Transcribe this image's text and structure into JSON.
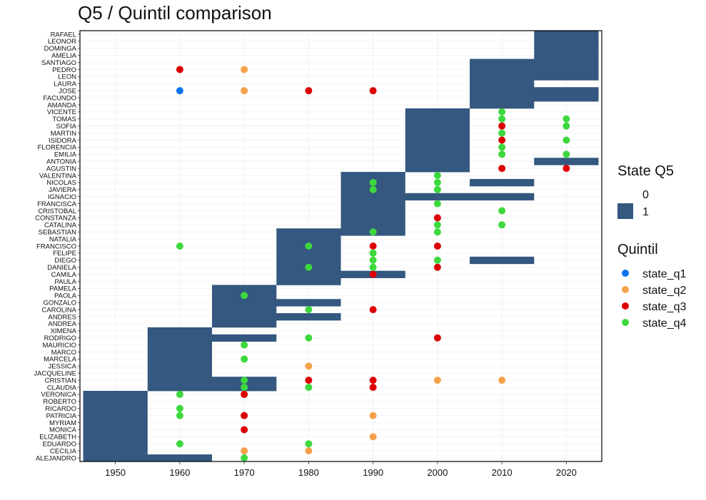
{
  "chart_data": {
    "type": "heatmap",
    "title": "Q5 / Quintil comparison",
    "xlabel": "",
    "ylabel": "",
    "x_ticks": [
      1950,
      1960,
      1970,
      1980,
      1990,
      2000,
      2010,
      2020
    ],
    "xlim": [
      1944.5,
      2025.5
    ],
    "names": [
      "RAFAEL",
      "LEONOR",
      "DOMINGA",
      "AMELIA",
      "SANTIAGO",
      "PEDRO",
      "LEON",
      "LAURA",
      "JOSE",
      "FACUNDO",
      "AMANDA",
      "VICENTE",
      "TOMAS",
      "SOFIA",
      "MARTIN",
      "ISIDORA",
      "FLORENCIA",
      "EMILIA",
      "ANTONIA",
      "AGUSTIN",
      "VALENTINA",
      "NICOLAS",
      "JAVIERA",
      "IGNACIO",
      "FRANCISCA",
      "CRISTOBAL",
      "CONSTANZA",
      "CATALINA",
      "SEBASTIAN",
      "NATALIA",
      "FRANCISCO",
      "FELIPE",
      "DIEGO",
      "DANIELA",
      "CAMILA",
      "PAULA",
      "PAMELA",
      "PAOLA",
      "GONZALO",
      "CAROLINA",
      "ANDRES",
      "ANDREA",
      "XIMENA",
      "RODRIGO",
      "MAURICIO",
      "MARCO",
      "MARCELA",
      "JESSICA",
      "JACQUELINE",
      "CRISTIAN",
      "CLAUDIA",
      "VERONICA",
      "ROBERTO",
      "RICARDO",
      "PATRICIA",
      "MYRIAM",
      "MONICA",
      "ELIZABETH",
      "EDUARDO",
      "CECILIA",
      "ALEJANDRO"
    ],
    "state_q5": {
      "levels": [
        "0",
        "1"
      ],
      "colors": {
        "0": "#ffffff",
        "1": "#34587f"
      },
      "tiles_value_1": [
        {
          "name": "RAFAEL",
          "from": 2015,
          "to": 2025
        },
        {
          "name": "LEONOR",
          "from": 2015,
          "to": 2025
        },
        {
          "name": "DOMINGA",
          "from": 2015,
          "to": 2025
        },
        {
          "name": "AMELIA",
          "from": 2015,
          "to": 2025
        },
        {
          "name": "SANTIAGO",
          "from": 2005,
          "to": 2025
        },
        {
          "name": "PEDRO",
          "from": 2005,
          "to": 2025
        },
        {
          "name": "LEON",
          "from": 2005,
          "to": 2025
        },
        {
          "name": "LAURA",
          "from": 2005,
          "to": 2015
        },
        {
          "name": "JOSE",
          "from": 2005,
          "to": 2025
        },
        {
          "name": "FACUNDO",
          "from": 2005,
          "to": 2025
        },
        {
          "name": "AMANDA",
          "from": 2005,
          "to": 2015
        },
        {
          "name": "VICENTE",
          "from": 1995,
          "to": 2005
        },
        {
          "name": "TOMAS",
          "from": 1995,
          "to": 2005
        },
        {
          "name": "SOFIA",
          "from": 1995,
          "to": 2005
        },
        {
          "name": "MARTIN",
          "from": 1995,
          "to": 2005
        },
        {
          "name": "ISIDORA",
          "from": 1995,
          "to": 2005
        },
        {
          "name": "FLORENCIA",
          "from": 1995,
          "to": 2005
        },
        {
          "name": "EMILIA",
          "from": 1995,
          "to": 2005
        },
        {
          "name": "ANTONIA",
          "from": 1995,
          "to": 2005
        },
        {
          "name": "ANTONIA",
          "from": 2015,
          "to": 2025
        },
        {
          "name": "AGUSTIN",
          "from": 1995,
          "to": 2005
        },
        {
          "name": "VALENTINA",
          "from": 1985,
          "to": 1995
        },
        {
          "name": "NICOLAS",
          "from": 1985,
          "to": 1995
        },
        {
          "name": "NICOLAS",
          "from": 2005,
          "to": 2015
        },
        {
          "name": "JAVIERA",
          "from": 1985,
          "to": 1995
        },
        {
          "name": "IGNACIO",
          "from": 1985,
          "to": 2015
        },
        {
          "name": "FRANCISCA",
          "from": 1985,
          "to": 1995
        },
        {
          "name": "CRISTOBAL",
          "from": 1985,
          "to": 1995
        },
        {
          "name": "CONSTANZA",
          "from": 1985,
          "to": 1995
        },
        {
          "name": "CATALINA",
          "from": 1985,
          "to": 1995
        },
        {
          "name": "SEBASTIAN",
          "from": 1975,
          "to": 1995
        },
        {
          "name": "NATALIA",
          "from": 1975,
          "to": 1985
        },
        {
          "name": "FRANCISCO",
          "from": 1975,
          "to": 1985
        },
        {
          "name": "FELIPE",
          "from": 1975,
          "to": 1985
        },
        {
          "name": "DIEGO",
          "from": 1975,
          "to": 1985
        },
        {
          "name": "DIEGO",
          "from": 2005,
          "to": 2015
        },
        {
          "name": "DANIELA",
          "from": 1975,
          "to": 1985
        },
        {
          "name": "CAMILA",
          "from": 1975,
          "to": 1995
        },
        {
          "name": "PAULA",
          "from": 1975,
          "to": 1985
        },
        {
          "name": "PAMELA",
          "from": 1965,
          "to": 1975
        },
        {
          "name": "PAOLA",
          "from": 1965,
          "to": 1975
        },
        {
          "name": "GONZALO",
          "from": 1965,
          "to": 1985
        },
        {
          "name": "CAROLINA",
          "from": 1965,
          "to": 1975
        },
        {
          "name": "ANDRES",
          "from": 1965,
          "to": 1985
        },
        {
          "name": "ANDREA",
          "from": 1965,
          "to": 1975
        },
        {
          "name": "XIMENA",
          "from": 1955,
          "to": 1965
        },
        {
          "name": "RODRIGO",
          "from": 1955,
          "to": 1975
        },
        {
          "name": "MAURICIO",
          "from": 1955,
          "to": 1965
        },
        {
          "name": "MARCO",
          "from": 1955,
          "to": 1965
        },
        {
          "name": "MARCELA",
          "from": 1955,
          "to": 1965
        },
        {
          "name": "JESSICA",
          "from": 1955,
          "to": 1965
        },
        {
          "name": "JACQUELINE",
          "from": 1955,
          "to": 1965
        },
        {
          "name": "CRISTIAN",
          "from": 1955,
          "to": 1975
        },
        {
          "name": "CLAUDIA",
          "from": 1955,
          "to": 1975
        },
        {
          "name": "VERONICA",
          "from": 1945,
          "to": 1955
        },
        {
          "name": "ROBERTO",
          "from": 1945,
          "to": 1955
        },
        {
          "name": "RICARDO",
          "from": 1945,
          "to": 1955
        },
        {
          "name": "PATRICIA",
          "from": 1945,
          "to": 1955
        },
        {
          "name": "MYRIAM",
          "from": 1945,
          "to": 1955
        },
        {
          "name": "MONICA",
          "from": 1945,
          "to": 1955
        },
        {
          "name": "ELIZABETH",
          "from": 1945,
          "to": 1955
        },
        {
          "name": "EDUARDO",
          "from": 1945,
          "to": 1955
        },
        {
          "name": "CECILIA",
          "from": 1945,
          "to": 1955
        },
        {
          "name": "ALEJANDRO",
          "from": 1945,
          "to": 1965
        }
      ]
    },
    "quintil": {
      "levels": [
        "state_q1",
        "state_q2",
        "state_q3",
        "state_q4"
      ],
      "colors": {
        "state_q1": "#0a74e8",
        "state_q2": "#f5a14a",
        "state_q3": "#dd0000",
        "state_q4": "#3dd83d"
      },
      "points": [
        {
          "name": "PEDRO",
          "x": 1960,
          "quintil": "state_q3"
        },
        {
          "name": "PEDRO",
          "x": 1970,
          "quintil": "state_q2"
        },
        {
          "name": "JOSE",
          "x": 1960,
          "quintil": "state_q1"
        },
        {
          "name": "JOSE",
          "x": 1970,
          "quintil": "state_q2"
        },
        {
          "name": "JOSE",
          "x": 1980,
          "quintil": "state_q3"
        },
        {
          "name": "JOSE",
          "x": 1990,
          "quintil": "state_q3"
        },
        {
          "name": "VICENTE",
          "x": 2010,
          "quintil": "state_q4"
        },
        {
          "name": "TOMAS",
          "x": 2010,
          "quintil": "state_q4"
        },
        {
          "name": "TOMAS",
          "x": 2020,
          "quintil": "state_q4"
        },
        {
          "name": "SOFIA",
          "x": 2010,
          "quintil": "state_q3"
        },
        {
          "name": "SOFIA",
          "x": 2020,
          "quintil": "state_q4"
        },
        {
          "name": "MARTIN",
          "x": 2010,
          "quintil": "state_q4"
        },
        {
          "name": "ISIDORA",
          "x": 2010,
          "quintil": "state_q3"
        },
        {
          "name": "ISIDORA",
          "x": 2020,
          "quintil": "state_q4"
        },
        {
          "name": "FLORENCIA",
          "x": 2010,
          "quintil": "state_q4"
        },
        {
          "name": "EMILIA",
          "x": 2010,
          "quintil": "state_q4"
        },
        {
          "name": "EMILIA",
          "x": 2020,
          "quintil": "state_q4"
        },
        {
          "name": "AGUSTIN",
          "x": 2010,
          "quintil": "state_q3"
        },
        {
          "name": "AGUSTIN",
          "x": 2020,
          "quintil": "state_q3"
        },
        {
          "name": "VALENTINA",
          "x": 2000,
          "quintil": "state_q4"
        },
        {
          "name": "NICOLAS",
          "x": 1990,
          "quintil": "state_q4"
        },
        {
          "name": "NICOLAS",
          "x": 2000,
          "quintil": "state_q4"
        },
        {
          "name": "JAVIERA",
          "x": 1990,
          "quintil": "state_q4"
        },
        {
          "name": "JAVIERA",
          "x": 2000,
          "quintil": "state_q4"
        },
        {
          "name": "FRANCISCA",
          "x": 2000,
          "quintil": "state_q4"
        },
        {
          "name": "CRISTOBAL",
          "x": 2010,
          "quintil": "state_q4"
        },
        {
          "name": "CONSTANZA",
          "x": 2000,
          "quintil": "state_q3"
        },
        {
          "name": "CATALINA",
          "x": 2000,
          "quintil": "state_q4"
        },
        {
          "name": "CATALINA",
          "x": 2010,
          "quintil": "state_q4"
        },
        {
          "name": "SEBASTIAN",
          "x": 1990,
          "quintil": "state_q4"
        },
        {
          "name": "SEBASTIAN",
          "x": 2000,
          "quintil": "state_q4"
        },
        {
          "name": "FRANCISCO",
          "x": 1960,
          "quintil": "state_q4"
        },
        {
          "name": "FRANCISCO",
          "x": 1980,
          "quintil": "state_q4"
        },
        {
          "name": "FRANCISCO",
          "x": 1990,
          "quintil": "state_q3"
        },
        {
          "name": "FRANCISCO",
          "x": 2000,
          "quintil": "state_q3"
        },
        {
          "name": "FELIPE",
          "x": 1990,
          "quintil": "state_q4"
        },
        {
          "name": "DIEGO",
          "x": 1990,
          "quintil": "state_q4"
        },
        {
          "name": "DIEGO",
          "x": 2000,
          "quintil": "state_q4"
        },
        {
          "name": "DANIELA",
          "x": 1980,
          "quintil": "state_q4"
        },
        {
          "name": "DANIELA",
          "x": 1990,
          "quintil": "state_q4"
        },
        {
          "name": "DANIELA",
          "x": 2000,
          "quintil": "state_q3"
        },
        {
          "name": "CAMILA",
          "x": 1990,
          "quintil": "state_q3"
        },
        {
          "name": "PAOLA",
          "x": 1970,
          "quintil": "state_q4"
        },
        {
          "name": "CAROLINA",
          "x": 1980,
          "quintil": "state_q4"
        },
        {
          "name": "CAROLINA",
          "x": 1990,
          "quintil": "state_q3"
        },
        {
          "name": "RODRIGO",
          "x": 1980,
          "quintil": "state_q4"
        },
        {
          "name": "RODRIGO",
          "x": 2000,
          "quintil": "state_q3"
        },
        {
          "name": "MAURICIO",
          "x": 1970,
          "quintil": "state_q4"
        },
        {
          "name": "MARCELA",
          "x": 1970,
          "quintil": "state_q4"
        },
        {
          "name": "JESSICA",
          "x": 1980,
          "quintil": "state_q2"
        },
        {
          "name": "CRISTIAN",
          "x": 1970,
          "quintil": "state_q4"
        },
        {
          "name": "CRISTIAN",
          "x": 1980,
          "quintil": "state_q3"
        },
        {
          "name": "CRISTIAN",
          "x": 1990,
          "quintil": "state_q3"
        },
        {
          "name": "CRISTIAN",
          "x": 2000,
          "quintil": "state_q2"
        },
        {
          "name": "CRISTIAN",
          "x": 2010,
          "quintil": "state_q2"
        },
        {
          "name": "CLAUDIA",
          "x": 1970,
          "quintil": "state_q4"
        },
        {
          "name": "CLAUDIA",
          "x": 1980,
          "quintil": "state_q4"
        },
        {
          "name": "CLAUDIA",
          "x": 1990,
          "quintil": "state_q3"
        },
        {
          "name": "VERONICA",
          "x": 1960,
          "quintil": "state_q4"
        },
        {
          "name": "VERONICA",
          "x": 1970,
          "quintil": "state_q3"
        },
        {
          "name": "RICARDO",
          "x": 1960,
          "quintil": "state_q4"
        },
        {
          "name": "PATRICIA",
          "x": 1960,
          "quintil": "state_q4"
        },
        {
          "name": "PATRICIA",
          "x": 1970,
          "quintil": "state_q3"
        },
        {
          "name": "PATRICIA",
          "x": 1990,
          "quintil": "state_q2"
        },
        {
          "name": "MONICA",
          "x": 1970,
          "quintil": "state_q3"
        },
        {
          "name": "ELIZABETH",
          "x": 1990,
          "quintil": "state_q2"
        },
        {
          "name": "EDUARDO",
          "x": 1960,
          "quintil": "state_q4"
        },
        {
          "name": "EDUARDO",
          "x": 1980,
          "quintil": "state_q4"
        },
        {
          "name": "CECILIA",
          "x": 1970,
          "quintil": "state_q2"
        },
        {
          "name": "CECILIA",
          "x": 1980,
          "quintil": "state_q2"
        },
        {
          "name": "ALEJANDRO",
          "x": 1970,
          "quintil": "state_q4"
        }
      ]
    },
    "legend": {
      "position": "right",
      "state_title": "State Q5",
      "state_labels": [
        "0",
        "1"
      ],
      "quintil_title": "Quintil",
      "quintil_labels": [
        "state_q1",
        "state_q2",
        "state_q3",
        "state_q4"
      ]
    },
    "grid": true
  }
}
